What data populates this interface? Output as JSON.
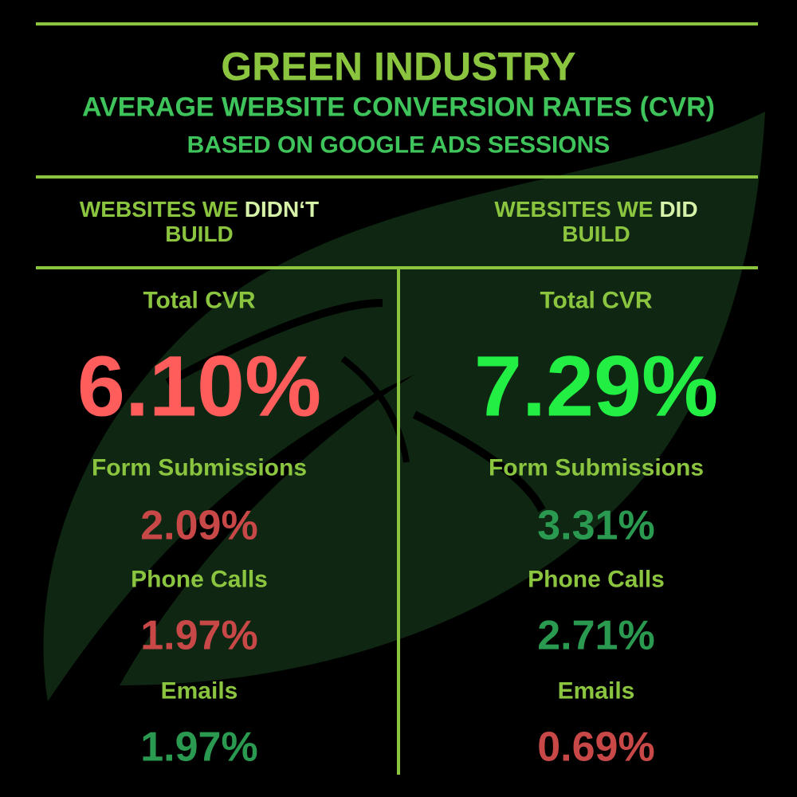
{
  "header": {
    "title": "GREEN INDUSTRY",
    "subtitle": "AVERAGE WEBSITE CONVERSION RATES (CVR)",
    "note": "BASED ON GOOGLE ADS SESSIONS"
  },
  "columns": [
    {
      "heading": [
        "WEBSITES WE",
        "DIDN‘T",
        "BUILD"
      ],
      "metrics": [
        {
          "label": "Total CVR",
          "value": "6.10%",
          "color": "#ff5c5c"
        },
        {
          "label": "Form Submissions",
          "value": "2.09%",
          "color": "#c84848"
        },
        {
          "label": "Phone Calls",
          "value": "1.97%",
          "color": "#c84848"
        },
        {
          "label": "Emails",
          "value": "1.97%",
          "color": "#2a9a50"
        }
      ]
    },
    {
      "heading": [
        "WEBSITES WE",
        "DID",
        "BUILD"
      ],
      "metrics": [
        {
          "label": "Total CVR",
          "value": "7.29%",
          "color": "#22ee44"
        },
        {
          "label": "Form Submissions",
          "value": "3.31%",
          "color": "#2a9a50"
        },
        {
          "label": "Phone Calls",
          "value": "2.71%",
          "color": "#2a9a50"
        },
        {
          "label": "Emails",
          "value": "0.69%",
          "color": "#c84848"
        }
      ]
    }
  ]
}
